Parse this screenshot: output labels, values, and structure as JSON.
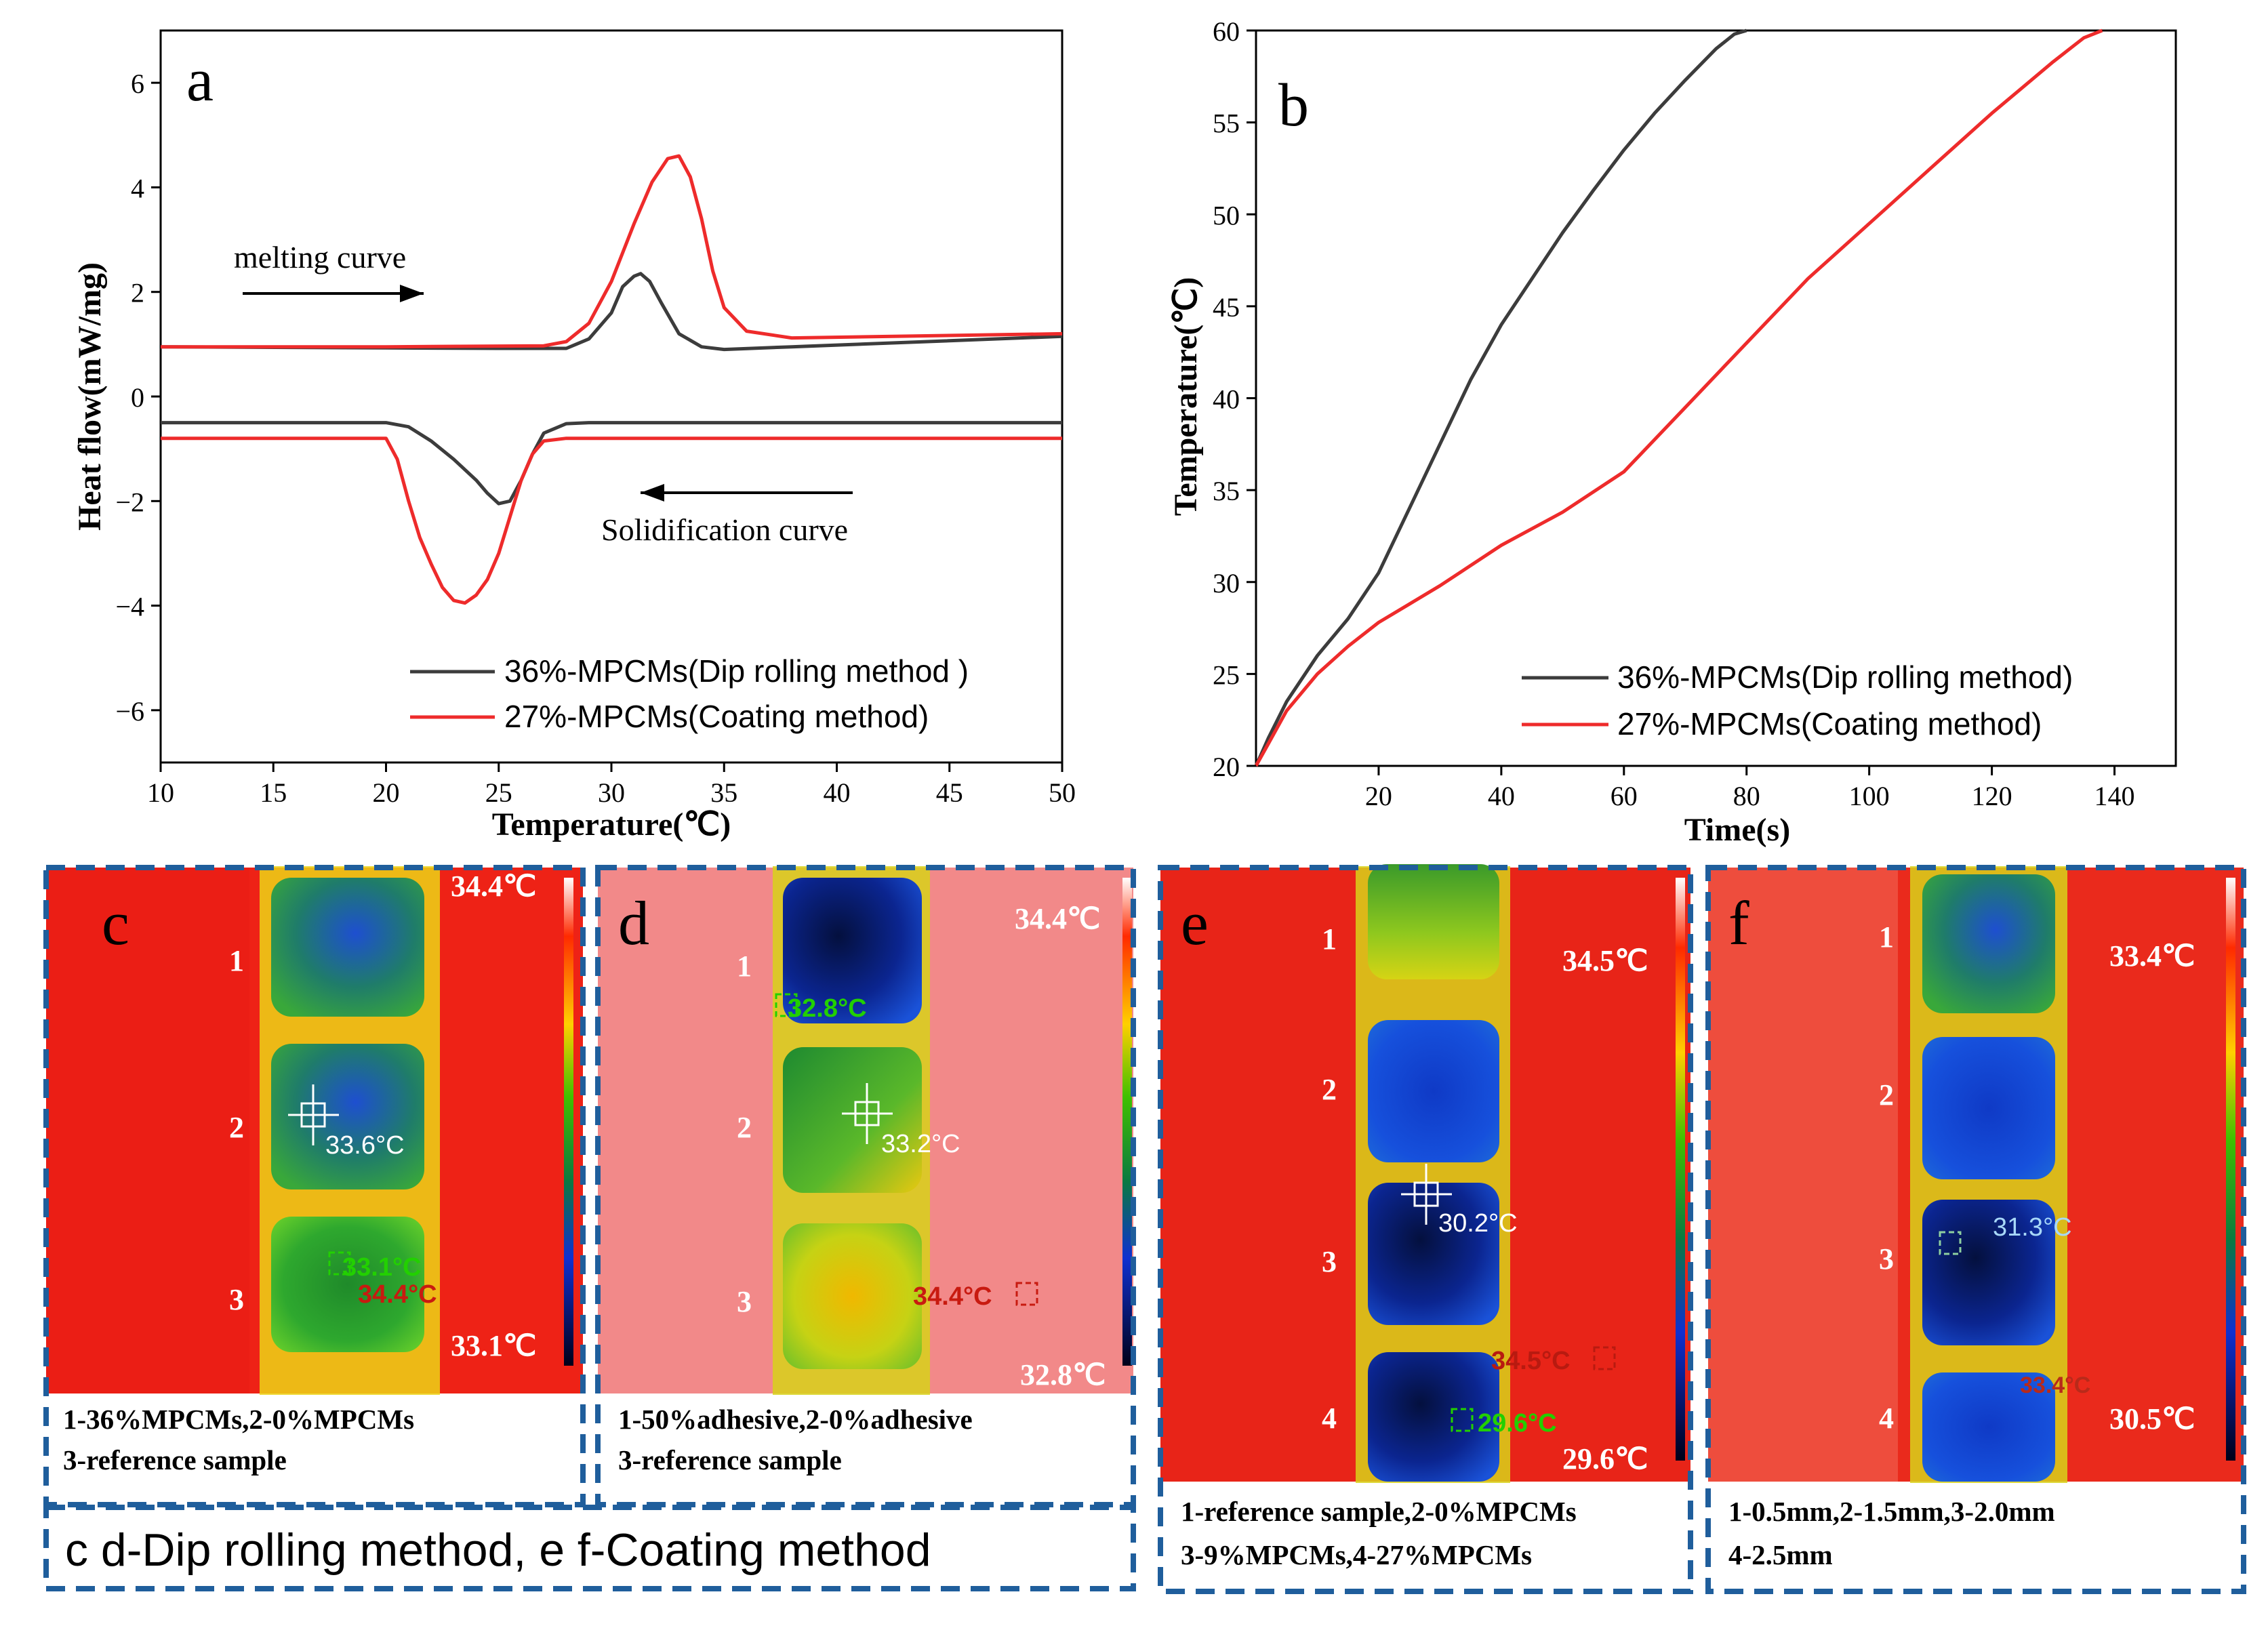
{
  "colors": {
    "dip": "#3c3c3c",
    "coat": "#ee2b2b",
    "frame": "#1f5e9c"
  },
  "chart_data": [
    {
      "type": "line",
      "panel_letter": "a",
      "xlabel": "Temperature(℃)",
      "ylabel": "Heat flow(mW/mg)",
      "xlim": [
        10,
        50
      ],
      "ylim": [
        -7,
        7
      ],
      "xticks": [
        "10",
        "15",
        "20",
        "25",
        "30",
        "35",
        "40",
        "45",
        "50"
      ],
      "yticks": [
        "−6",
        "−4",
        "−2",
        "0",
        "2",
        "4",
        "6"
      ],
      "annotations": {
        "melting": "melting curve",
        "solidification": "Solidification curve"
      },
      "legend_position": "bottom-right",
      "series": [
        {
          "name": "36%-MPCMs(Dip rolling method )",
          "color": "#3c3c3c",
          "x": [
            10,
            20,
            25,
            28,
            29,
            30,
            30.5,
            31,
            31.3,
            31.7,
            32.2,
            33,
            34,
            35,
            38,
            50
          ],
          "y": [
            0.95,
            0.93,
            0.92,
            0.92,
            1.1,
            1.6,
            2.1,
            2.3,
            2.35,
            2.2,
            1.8,
            1.2,
            0.95,
            0.9,
            0.95,
            1.15
          ]
        },
        {
          "name": "",
          "color": "#3c3c3c",
          "x": [
            10,
            20,
            21,
            22,
            23,
            24,
            24.5,
            25,
            25.5,
            26,
            26.5,
            27,
            28,
            29,
            50
          ],
          "y": [
            -0.5,
            -0.5,
            -0.58,
            -0.85,
            -1.2,
            -1.6,
            -1.85,
            -2.05,
            -2.0,
            -1.6,
            -1.1,
            -0.7,
            -0.52,
            -0.5,
            -0.5
          ]
        },
        {
          "name": "27%-MPCMs(Coating method)",
          "color": "#ee2b2b",
          "x": [
            10,
            20,
            27,
            28,
            29,
            30,
            31,
            31.8,
            32.5,
            33,
            33.5,
            34,
            34.5,
            35,
            36,
            38,
            50
          ],
          "y": [
            0.95,
            0.95,
            0.97,
            1.05,
            1.4,
            2.2,
            3.3,
            4.1,
            4.55,
            4.6,
            4.2,
            3.4,
            2.4,
            1.7,
            1.25,
            1.12,
            1.2
          ]
        },
        {
          "name": "",
          "color": "#ee2b2b",
          "x": [
            10,
            20,
            20.5,
            21,
            21.5,
            22,
            22.5,
            23,
            23.5,
            24,
            24.5,
            25,
            25.5,
            26,
            26.5,
            27,
            28,
            50
          ],
          "y": [
            -0.8,
            -0.8,
            -1.2,
            -2.0,
            -2.7,
            -3.2,
            -3.65,
            -3.9,
            -3.95,
            -3.8,
            -3.5,
            -3.0,
            -2.3,
            -1.6,
            -1.1,
            -0.85,
            -0.8,
            -0.8
          ]
        }
      ]
    },
    {
      "type": "line",
      "panel_letter": "b",
      "xlabel": "Time(s)",
      "ylabel": "Temperature(℃)",
      "xlim": [
        0,
        150
      ],
      "ylim": [
        20,
        60
      ],
      "xticks": [
        "20",
        "40",
        "60",
        "80",
        "100",
        "120",
        "140"
      ],
      "yticks": [
        "20",
        "25",
        "30",
        "35",
        "40",
        "45",
        "50",
        "55",
        "60"
      ],
      "legend_position": "bottom-right",
      "series": [
        {
          "name": "36%-MPCMs(Dip rolling method)",
          "color": "#3c3c3c",
          "x": [
            0,
            2,
            5,
            10,
            15,
            20,
            25,
            30,
            35,
            40,
            45,
            50,
            55,
            60,
            65,
            70,
            75,
            78,
            80
          ],
          "y": [
            20,
            21.5,
            23.5,
            26,
            28,
            30.5,
            34,
            37.5,
            41,
            44,
            46.5,
            49,
            51.3,
            53.5,
            55.5,
            57.3,
            59,
            59.8,
            60
          ]
        },
        {
          "name": "27%-MPCMs(Coating method)",
          "color": "#ee2b2b",
          "x": [
            0,
            2,
            5,
            10,
            15,
            20,
            25,
            30,
            40,
            50,
            60,
            70,
            80,
            90,
            100,
            110,
            120,
            130,
            135,
            138
          ],
          "y": [
            20,
            21.2,
            23,
            25,
            26.5,
            27.8,
            28.8,
            29.8,
            32,
            33.8,
            36,
            39.5,
            43,
            46.5,
            49.5,
            52.5,
            55.5,
            58.3,
            59.6,
            60
          ]
        }
      ]
    }
  ],
  "thermal_panels": [
    {
      "letter": "c",
      "temp_top": "34.4℃",
      "temp_bottom": "33.1℃",
      "numbers": [
        "1",
        "2",
        "3"
      ],
      "readouts": [
        "33.6°C",
        "33.1°C",
        "34.4°C"
      ],
      "caption": [
        "1-36%MPCMs,2-0%MPCMs",
        "3-reference sample"
      ]
    },
    {
      "letter": "d",
      "temp_top": "34.4℃",
      "temp_bottom": "32.8℃",
      "numbers": [
        "1",
        "2",
        "3"
      ],
      "readouts": [
        "32.8°C",
        "33.2°C",
        "34.4°C"
      ],
      "caption": [
        "1-50%adhesive,2-0%adhesive",
        "3-reference sample"
      ]
    },
    {
      "letter": "e",
      "temp_top": "34.5℃",
      "temp_bottom": "29.6℃",
      "numbers": [
        "1",
        "2",
        "3",
        "4"
      ],
      "readouts": [
        "30.2°C",
        "34.5°C",
        "29.6°C"
      ],
      "caption": [
        "1-reference sample,2-0%MPCMs",
        "3-9%MPCMs,4-27%MPCMs"
      ]
    },
    {
      "letter": "f",
      "temp_top": "33.4℃",
      "temp_bottom": "30.5℃",
      "numbers": [
        "1",
        "2",
        "3",
        "4"
      ],
      "readouts": [
        "31.3°C",
        "33.4°C"
      ],
      "caption": [
        "1-0.5mm,2-1.5mm,3-2.0mm",
        "4-2.5mm"
      ]
    }
  ],
  "method_label": "c  d-Dip rolling method, e  f-Coating method"
}
